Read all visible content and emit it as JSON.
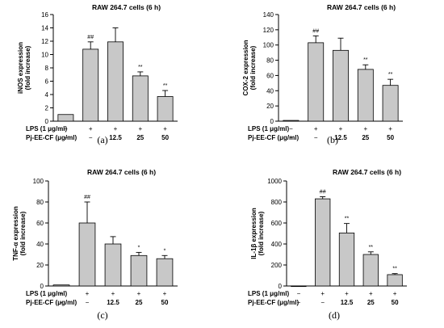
{
  "bar_color": "#c8c8c8",
  "row_labels": {
    "lps": "LPS (1 μg/ml)",
    "pj": "Pj-EE-CF (μg/ml)"
  },
  "lps_marks": [
    "−",
    "+",
    "+",
    "+",
    "+"
  ],
  "pj_marks": [
    "−",
    "−",
    "12.5",
    "25",
    "50"
  ],
  "chart_data": [
    {
      "type": "bar",
      "title": "RAW 264.7 cells (6 h)",
      "ylabel": [
        "iNOS expression",
        "(fold increase)"
      ],
      "categories": [
        "",
        "",
        "",
        "",
        ""
      ],
      "values": [
        1.0,
        10.8,
        11.9,
        6.8,
        3.7
      ],
      "errors": [
        0,
        1.1,
        2.1,
        0.6,
        0.9
      ],
      "significance": [
        "",
        "##",
        "",
        "**",
        "**"
      ],
      "ylim": [
        0,
        16
      ],
      "yticks": [
        0,
        2,
        4,
        6,
        8,
        10,
        12,
        14,
        16
      ],
      "caption": "(a)"
    },
    {
      "type": "bar",
      "title": "RAW 264.7 cells (6 h)",
      "ylabel": [
        "COX-2 expression",
        "(fold increase)"
      ],
      "categories": [
        "",
        "",
        "",
        "",
        ""
      ],
      "values": [
        1.0,
        103,
        93,
        68,
        47
      ],
      "errors": [
        0,
        9,
        16,
        6,
        8
      ],
      "significance": [
        "",
        "##",
        "",
        "**",
        "**"
      ],
      "ylim": [
        0,
        140
      ],
      "yticks": [
        0,
        20,
        40,
        60,
        80,
        100,
        120,
        140
      ],
      "caption": "(b)"
    },
    {
      "type": "bar",
      "title": "RAW 264.7 cells (6 h)",
      "ylabel": [
        "TNF-α expression",
        "(fold increase)"
      ],
      "categories": [
        "",
        "",
        "",
        "",
        ""
      ],
      "values": [
        1.0,
        60,
        40,
        29,
        26
      ],
      "errors": [
        0,
        20,
        7,
        3,
        3
      ],
      "significance": [
        "",
        "##",
        "",
        "*",
        "*"
      ],
      "ylim": [
        0,
        100
      ],
      "yticks": [
        0,
        20,
        40,
        60,
        80,
        100
      ],
      "caption": "(c)"
    },
    {
      "type": "bar",
      "title": "RAW 264.7 cells (6 h)",
      "ylabel": [
        "IL-1β expression",
        "(fold increase)"
      ],
      "categories": [
        "",
        "",
        "",
        "",
        ""
      ],
      "values": [
        1,
        830,
        505,
        300,
        108
      ],
      "errors": [
        0,
        20,
        90,
        25,
        10
      ],
      "significance": [
        "",
        "##",
        "**",
        "**",
        "**"
      ],
      "ylim": [
        0,
        1000
      ],
      "yticks": [
        0,
        200,
        400,
        600,
        800,
        1000
      ],
      "caption": "(d)"
    }
  ]
}
